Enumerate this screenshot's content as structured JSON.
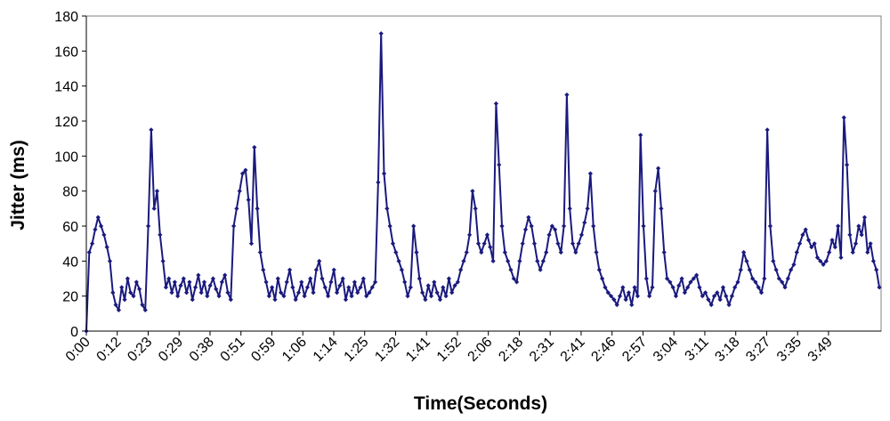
{
  "chart_data": {
    "type": "line",
    "title": "",
    "xlabel": "Time(Seconds)",
    "ylabel": "Jitter (ms)",
    "ylim": [
      0,
      180
    ],
    "y_ticks": [
      0,
      20,
      40,
      60,
      80,
      100,
      120,
      140,
      160,
      180
    ],
    "x_tick_labels": [
      "0:00",
      "0:12",
      "0:23",
      "0:29",
      "0:38",
      "0:51",
      "0:59",
      "1:06",
      "1:14",
      "1:25",
      "1:32",
      "1:41",
      "1:52",
      "2:06",
      "2:18",
      "2:31",
      "2:41",
      "2:46",
      "2:57",
      "3:04",
      "3:11",
      "3:18",
      "3:27",
      "3:35",
      "3:49"
    ],
    "grid": false,
    "legend": "none",
    "series_color": "#1a1a7e",
    "marker": "diamond",
    "series": [
      {
        "values": [
          0,
          45,
          50,
          58,
          65,
          60,
          55,
          48,
          40,
          22,
          15,
          12,
          25,
          18,
          30,
          22,
          20,
          28,
          24,
          15,
          12,
          60,
          115,
          70,
          80,
          55,
          40,
          25,
          30,
          22,
          28,
          20,
          26,
          30,
          22,
          28,
          18,
          25,
          32,
          22,
          28,
          20,
          26,
          30,
          24,
          20,
          28,
          32,
          22,
          18,
          60,
          70,
          80,
          90,
          92,
          75,
          50,
          105,
          70,
          45,
          35,
          28,
          20,
          25,
          18,
          30,
          22,
          20,
          28,
          35,
          25,
          18,
          22,
          28,
          20,
          25,
          30,
          22,
          35,
          40,
          30,
          25,
          20,
          28,
          35,
          22,
          26,
          30,
          18,
          25,
          20,
          28,
          22,
          25,
          30,
          20,
          22,
          25,
          28,
          85,
          170,
          90,
          70,
          60,
          50,
          45,
          40,
          35,
          28,
          20,
          25,
          60,
          45,
          30,
          22,
          18,
          26,
          20,
          28,
          22,
          18,
          25,
          20,
          30,
          22,
          26,
          28,
          35,
          40,
          45,
          55,
          80,
          70,
          50,
          45,
          50,
          55,
          48,
          40,
          130,
          95,
          60,
          45,
          40,
          35,
          30,
          28,
          40,
          50,
          58,
          65,
          60,
          50,
          40,
          35,
          40,
          45,
          55,
          60,
          58,
          50,
          45,
          60,
          135,
          70,
          50,
          45,
          50,
          55,
          62,
          70,
          90,
          60,
          45,
          35,
          30,
          25,
          22,
          20,
          18,
          15,
          20,
          25,
          18,
          22,
          15,
          25,
          20,
          112,
          60,
          30,
          20,
          25,
          80,
          93,
          70,
          45,
          30,
          28,
          25,
          20,
          26,
          30,
          22,
          25,
          28,
          30,
          32,
          25,
          20,
          22,
          18,
          15,
          20,
          22,
          18,
          25,
          20,
          15,
          20,
          25,
          28,
          35,
          45,
          40,
          35,
          30,
          28,
          25,
          22,
          30,
          115,
          60,
          40,
          35,
          30,
          28,
          25,
          30,
          35,
          38,
          45,
          50,
          55,
          58,
          52,
          48,
          50,
          42,
          40,
          38,
          40,
          45,
          52,
          48,
          60,
          42,
          122,
          95,
          55,
          45,
          50,
          60,
          55,
          65,
          45,
          50,
          40,
          35,
          25
        ]
      }
    ]
  }
}
